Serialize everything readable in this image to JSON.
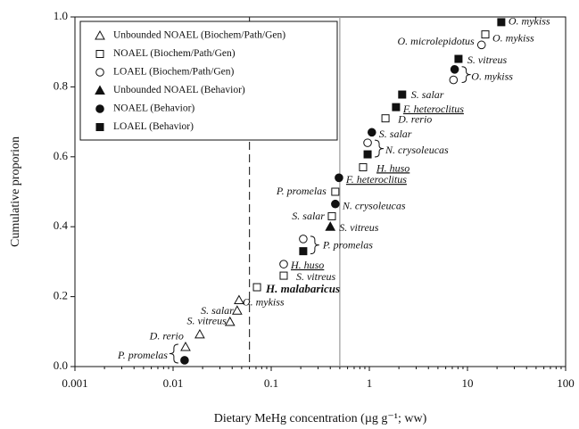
{
  "chart_data": {
    "type": "scatter",
    "x_label": "Dietary MeHg concentration (µg g⁻¹; ww)",
    "y_label": "Cumulative proporion",
    "xlog": true,
    "xlim": [
      0.001,
      100
    ],
    "xticks": [
      0.001,
      0.01,
      0.1,
      1,
      10,
      100
    ],
    "ylim": [
      0,
      1
    ],
    "yticks": [
      {
        "value": 0,
        "label": "0.0"
      },
      {
        "value": 0.2,
        "label": "0.2"
      },
      {
        "value": 0.4,
        "label": "0.4"
      },
      {
        "value": 0.6,
        "label": "0.6"
      },
      {
        "value": 0.8,
        "label": "0.8"
      },
      {
        "value": 1,
        "label": "1.0"
      }
    ],
    "reference_lines": [
      {
        "x": 0.06,
        "style": "dashed",
        "color": "#333"
      },
      {
        "x": 0.5,
        "style": "solid",
        "color": "#999"
      }
    ],
    "legend": "upper left",
    "series": [
      {
        "name": "Unbounded NOAEL (Biochem/Path/Gen)",
        "marker": "triangle",
        "filled": false,
        "color": "#111",
        "x": [
          0.0134,
          0.0187,
          0.038,
          0.045,
          0.047
        ],
        "values": [
          0.056,
          0.092,
          0.128,
          0.16,
          0.19
        ],
        "labels": [
          "P. promelas",
          "D. rerio",
          "S. vitreus",
          "S. salar",
          "O. mykiss"
        ]
      },
      {
        "name": "NOAEL (Biochem/Path/Gen)",
        "marker": "square",
        "filled": false,
        "color": "#111",
        "x": [
          0.0716,
          0.134,
          0.415,
          0.45,
          0.863,
          1.46,
          15.2
        ],
        "values": [
          0.227,
          0.26,
          0.43,
          0.5,
          0.57,
          0.71,
          0.95
        ],
        "labels": [
          "H. malabaricus",
          "S. vitreus",
          "S. salar",
          "P. promelas",
          "H. huso",
          "D. rerio",
          "O. mykiss"
        ]
      },
      {
        "name": "LOAEL (Biochem/Path/Gen)",
        "marker": "circle",
        "filled": false,
        "color": "#111",
        "x": [
          0.134,
          0.212,
          0.96,
          7.2,
          13.9
        ],
        "values": [
          0.293,
          0.365,
          0.64,
          0.82,
          0.92
        ],
        "labels": [
          "H. huso",
          "P. promelas",
          "N. crysoleucas",
          "O. mykiss",
          "O. microlepidotus"
        ]
      },
      {
        "name": "Unbounded NOAEL (Behavior)",
        "marker": "triangle",
        "filled": true,
        "color": "#111",
        "x": [
          0.4
        ],
        "values": [
          0.4
        ],
        "labels": [
          "S. vitreus"
        ]
      },
      {
        "name": "NOAEL (Behavior)",
        "marker": "circle",
        "filled": true,
        "color": "#111",
        "x": [
          0.0131,
          0.45,
          0.49,
          1.06,
          7.4
        ],
        "values": [
          0.018,
          0.465,
          0.54,
          0.67,
          0.85
        ],
        "labels": [
          null,
          "N. crysoleucas",
          "F. heteroclitus",
          "S. salar",
          null
        ]
      },
      {
        "name": "LOAEL (Behavior)",
        "marker": "square",
        "filled": true,
        "color": "#111",
        "x": [
          0.212,
          0.96,
          1.87,
          2.16,
          8.1,
          22.1
        ],
        "values": [
          0.33,
          0.607,
          0.742,
          0.778,
          0.88,
          0.985
        ],
        "labels": [
          null,
          null,
          "F. heteroclitus",
          "S. salar",
          "S. vitreus",
          "O. mykiss"
        ]
      }
    ]
  }
}
